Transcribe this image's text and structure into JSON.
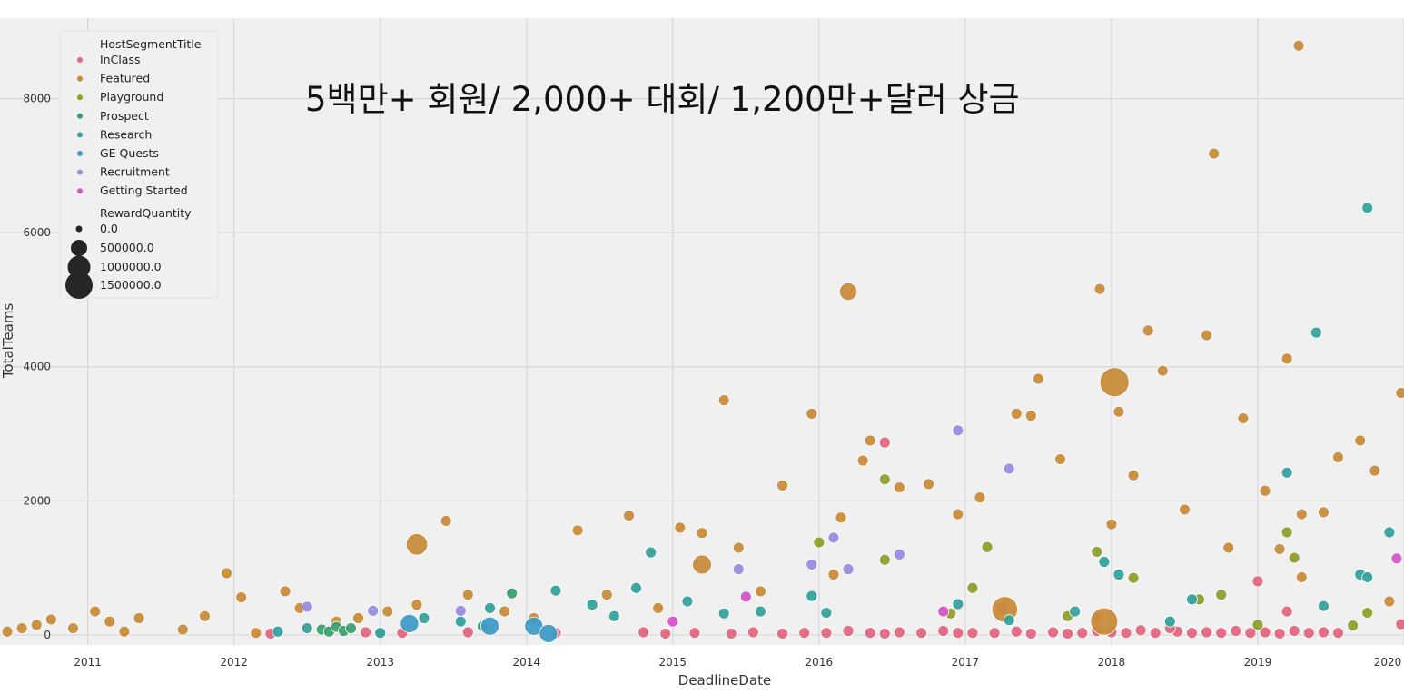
{
  "overlay_text": "5백만+ 회원/ 2,000+ 대회/ 1,200만+달러 상금",
  "colors": {
    "background": "#ffffff",
    "plot_background": "#f0f0f0",
    "grid": "#d8d8d8",
    "InClass": "#e0677f",
    "Featured": "#c88b3a",
    "Playground": "#8f9e2e",
    "Prospect": "#3aa06e",
    "Research": "#35a19c",
    "GE Quests": "#3f9bc5",
    "Recruitment": "#9a8ae0",
    "Getting Started": "#d454c8"
  },
  "chart_data": {
    "type": "scatter",
    "title": "",
    "xlabel": "DeadlineDate",
    "ylabel": "TotalTeams",
    "xlim": [
      2010.4,
      2020.0
    ],
    "ylim": [
      -150,
      9200
    ],
    "x_ticks": [
      "2011",
      "2012",
      "2013",
      "2014",
      "2015",
      "2016",
      "2017",
      "2018",
      "2019",
      "2020"
    ],
    "y_ticks": [
      "0",
      "2000",
      "4000",
      "6000",
      "8000"
    ],
    "grid": true,
    "legend_position": "top-left",
    "legend": {
      "hue_title": "HostSegmentTitle",
      "hue_entries": [
        "InClass",
        "Featured",
        "Playground",
        "Prospect",
        "Research",
        "GE Quests",
        "Recruitment",
        "Getting Started"
      ],
      "size_title": "RewardQuantity",
      "size_entries": [
        "0.0",
        "500000.0",
        "1000000.0",
        "1500000.0"
      ]
    },
    "series": [
      {
        "name": "InClass",
        "x": [
          2012.25,
          2012.9,
          2013.0,
          2013.15,
          2013.6,
          2014.2,
          2014.8,
          2014.95,
          2015.15,
          2015.4,
          2015.55,
          2015.75,
          2015.9,
          2016.05,
          2016.2,
          2016.35,
          2016.45,
          2016.55,
          2016.7,
          2016.85,
          2016.95,
          2017.05,
          2017.2,
          2017.35,
          2017.45,
          2017.6,
          2017.7,
          2017.8,
          2017.9,
          2018.0,
          2018.1,
          2018.2,
          2018.3,
          2018.45,
          2018.55,
          2018.65,
          2018.75,
          2018.85,
          2018.95,
          2019.05,
          2019.15,
          2019.25,
          2019.35,
          2019.45,
          2019.55,
          2019.98,
          2016.45,
          2019.0,
          2019.2,
          2018.4,
          2017.9
        ],
        "y": [
          20,
          40,
          20,
          30,
          40,
          30,
          40,
          20,
          30,
          20,
          40,
          20,
          30,
          30,
          60,
          30,
          20,
          40,
          30,
          60,
          30,
          30,
          30,
          50,
          20,
          40,
          20,
          30,
          60,
          40,
          30,
          70,
          30,
          50,
          30,
          40,
          30,
          60,
          30,
          40,
          20,
          60,
          30,
          40,
          30,
          160,
          2870,
          800,
          350,
          100,
          250
        ],
        "reward": [
          0,
          0,
          0,
          0,
          0,
          0,
          0,
          0,
          0,
          0,
          0,
          0,
          0,
          0,
          0,
          0,
          0,
          0,
          0,
          0,
          0,
          0,
          0,
          0,
          0,
          0,
          0,
          0,
          0,
          0,
          0,
          0,
          0,
          0,
          0,
          0,
          0,
          0,
          0,
          0,
          0,
          0,
          0,
          0,
          0,
          0,
          0,
          0,
          0,
          0,
          0
        ]
      },
      {
        "name": "Featured",
        "x": [
          2010.45,
          2010.55,
          2010.65,
          2010.75,
          2010.9,
          2011.05,
          2011.15,
          2011.25,
          2011.35,
          2011.65,
          2011.8,
          2011.95,
          2012.05,
          2012.15,
          2012.35,
          2012.45,
          2012.7,
          2012.85,
          2013.05,
          2013.25,
          2013.45,
          2013.6,
          2013.85,
          2014.05,
          2014.35,
          2014.55,
          2014.7,
          2014.9,
          2015.05,
          2015.2,
          2015.35,
          2015.45,
          2015.6,
          2015.75,
          2015.95,
          2016.1,
          2016.15,
          2016.3,
          2016.35,
          2016.55,
          2016.75,
          2016.95,
          2017.1,
          2017.25,
          2017.35,
          2017.45,
          2017.5,
          2017.65,
          2017.92,
          2018.0,
          2018.05,
          2018.15,
          2018.25,
          2018.35,
          2018.5,
          2018.65,
          2018.7,
          2018.8,
          2018.9,
          2019.05,
          2019.15,
          2019.2,
          2019.3,
          2019.45,
          2019.55,
          2019.7,
          2019.8,
          2019.9,
          2019.98,
          2019.28,
          2019.3,
          2016.2,
          2013.25,
          2015.2,
          2017.27,
          2017.95,
          2018.02
        ],
        "y": [
          50,
          100,
          150,
          230,
          100,
          350,
          200,
          50,
          250,
          80,
          280,
          920,
          560,
          30,
          650,
          400,
          200,
          250,
          350,
          450,
          1700,
          600,
          350,
          250,
          1560,
          600,
          1780,
          400,
          1600,
          1520,
          3500,
          1300,
          650,
          2230,
          3300,
          900,
          1750,
          2600,
          2900,
          2200,
          2250,
          1800,
          2050,
          400,
          3300,
          3270,
          3820,
          2620,
          5160,
          1650,
          3330,
          2380,
          4540,
          3940,
          1870,
          4470,
          7180,
          1300,
          3230,
          2150,
          1280,
          4120,
          1800,
          1830,
          2650,
          2900,
          2450,
          500,
          3610,
          8790,
          860,
          5120,
          1350,
          1050,
          380,
          200,
          3770
        ],
        "reward": [
          0,
          0,
          0,
          0,
          0,
          0,
          0,
          0,
          0,
          0,
          0,
          0,
          0,
          0,
          0,
          0,
          0,
          0,
          0,
          0,
          0,
          0,
          0,
          0,
          0,
          0,
          0,
          0,
          0,
          0,
          0,
          0,
          0,
          0,
          0,
          0,
          0,
          0,
          0,
          0,
          0,
          0,
          0,
          0,
          0,
          0,
          0,
          0,
          0,
          0,
          0,
          0,
          0,
          0,
          0,
          0,
          0,
          0,
          0,
          0,
          0,
          0,
          0,
          0,
          0,
          0,
          0,
          0,
          0,
          0,
          0,
          200000,
          500000,
          300000,
          1000000,
          1200000,
          1500000
        ]
      },
      {
        "name": "Playground",
        "x": [
          2016.45,
          2016.9,
          2017.05,
          2017.15,
          2017.7,
          2017.9,
          2018.15,
          2018.6,
          2018.75,
          2019.0,
          2019.2,
          2019.25,
          2019.65,
          2019.75,
          2016.0,
          2016.45
        ],
        "y": [
          1120,
          320,
          700,
          1310,
          280,
          1240,
          850,
          530,
          600,
          150,
          1530,
          1150,
          140,
          330,
          1380,
          2320
        ],
        "reward": [
          0,
          0,
          0,
          0,
          0,
          0,
          0,
          0,
          0,
          0,
          0,
          0,
          0,
          0,
          0,
          0
        ]
      },
      {
        "name": "Prospect",
        "x": [
          2012.6,
          2012.65,
          2012.7,
          2012.75,
          2012.8,
          2013.7,
          2013.9
        ],
        "y": [
          80,
          50,
          120,
          60,
          100,
          130,
          620
        ],
        "reward": [
          0,
          0,
          0,
          0,
          0,
          0,
          0
        ]
      },
      {
        "name": "Research",
        "x": [
          2012.3,
          2012.5,
          2013.0,
          2013.3,
          2013.55,
          2013.75,
          2014.2,
          2014.45,
          2014.6,
          2014.75,
          2014.85,
          2015.1,
          2015.35,
          2015.6,
          2015.95,
          2016.05,
          2016.95,
          2017.3,
          2017.75,
          2017.95,
          2018.05,
          2018.4,
          2018.55,
          2019.2,
          2019.45,
          2019.7,
          2019.75,
          2019.9,
          2019.75,
          2019.4
        ],
        "y": [
          50,
          100,
          30,
          250,
          200,
          400,
          660,
          450,
          280,
          700,
          1230,
          500,
          320,
          350,
          580,
          330,
          460,
          220,
          350,
          1090,
          900,
          200,
          530,
          2420,
          430,
          900,
          860,
          1530,
          6370,
          4510
        ],
        "reward": [
          0,
          0,
          0,
          0,
          0,
          0,
          0,
          0,
          0,
          0,
          0,
          0,
          0,
          0,
          0,
          0,
          0,
          0,
          0,
          0,
          0,
          0,
          0,
          0,
          0,
          0,
          0,
          0,
          0,
          0
        ]
      },
      {
        "name": "GE Quests",
        "x": [
          2013.2,
          2013.75,
          2014.05,
          2014.15
        ],
        "y": [
          170,
          130,
          130,
          20
        ],
        "reward": [
          250000,
          250000,
          250000,
          250000
        ]
      },
      {
        "name": "Recruitment",
        "x": [
          2012.5,
          2012.95,
          2013.55,
          2015.45,
          2015.95,
          2016.1,
          2016.2,
          2016.55,
          2016.95,
          2017.3
        ],
        "y": [
          420,
          360,
          360,
          980,
          1050,
          1450,
          980,
          1200,
          3050,
          2480
        ],
        "reward": [
          0,
          0,
          0,
          0,
          0,
          0,
          0,
          0,
          0,
          0
        ]
      },
      {
        "name": "Getting Started",
        "x": [
          2015.0,
          2015.5,
          2016.85,
          2019.95
        ],
        "y": [
          200,
          570,
          350,
          1140
        ],
        "reward": [
          0,
          0,
          0,
          0
        ]
      }
    ]
  }
}
